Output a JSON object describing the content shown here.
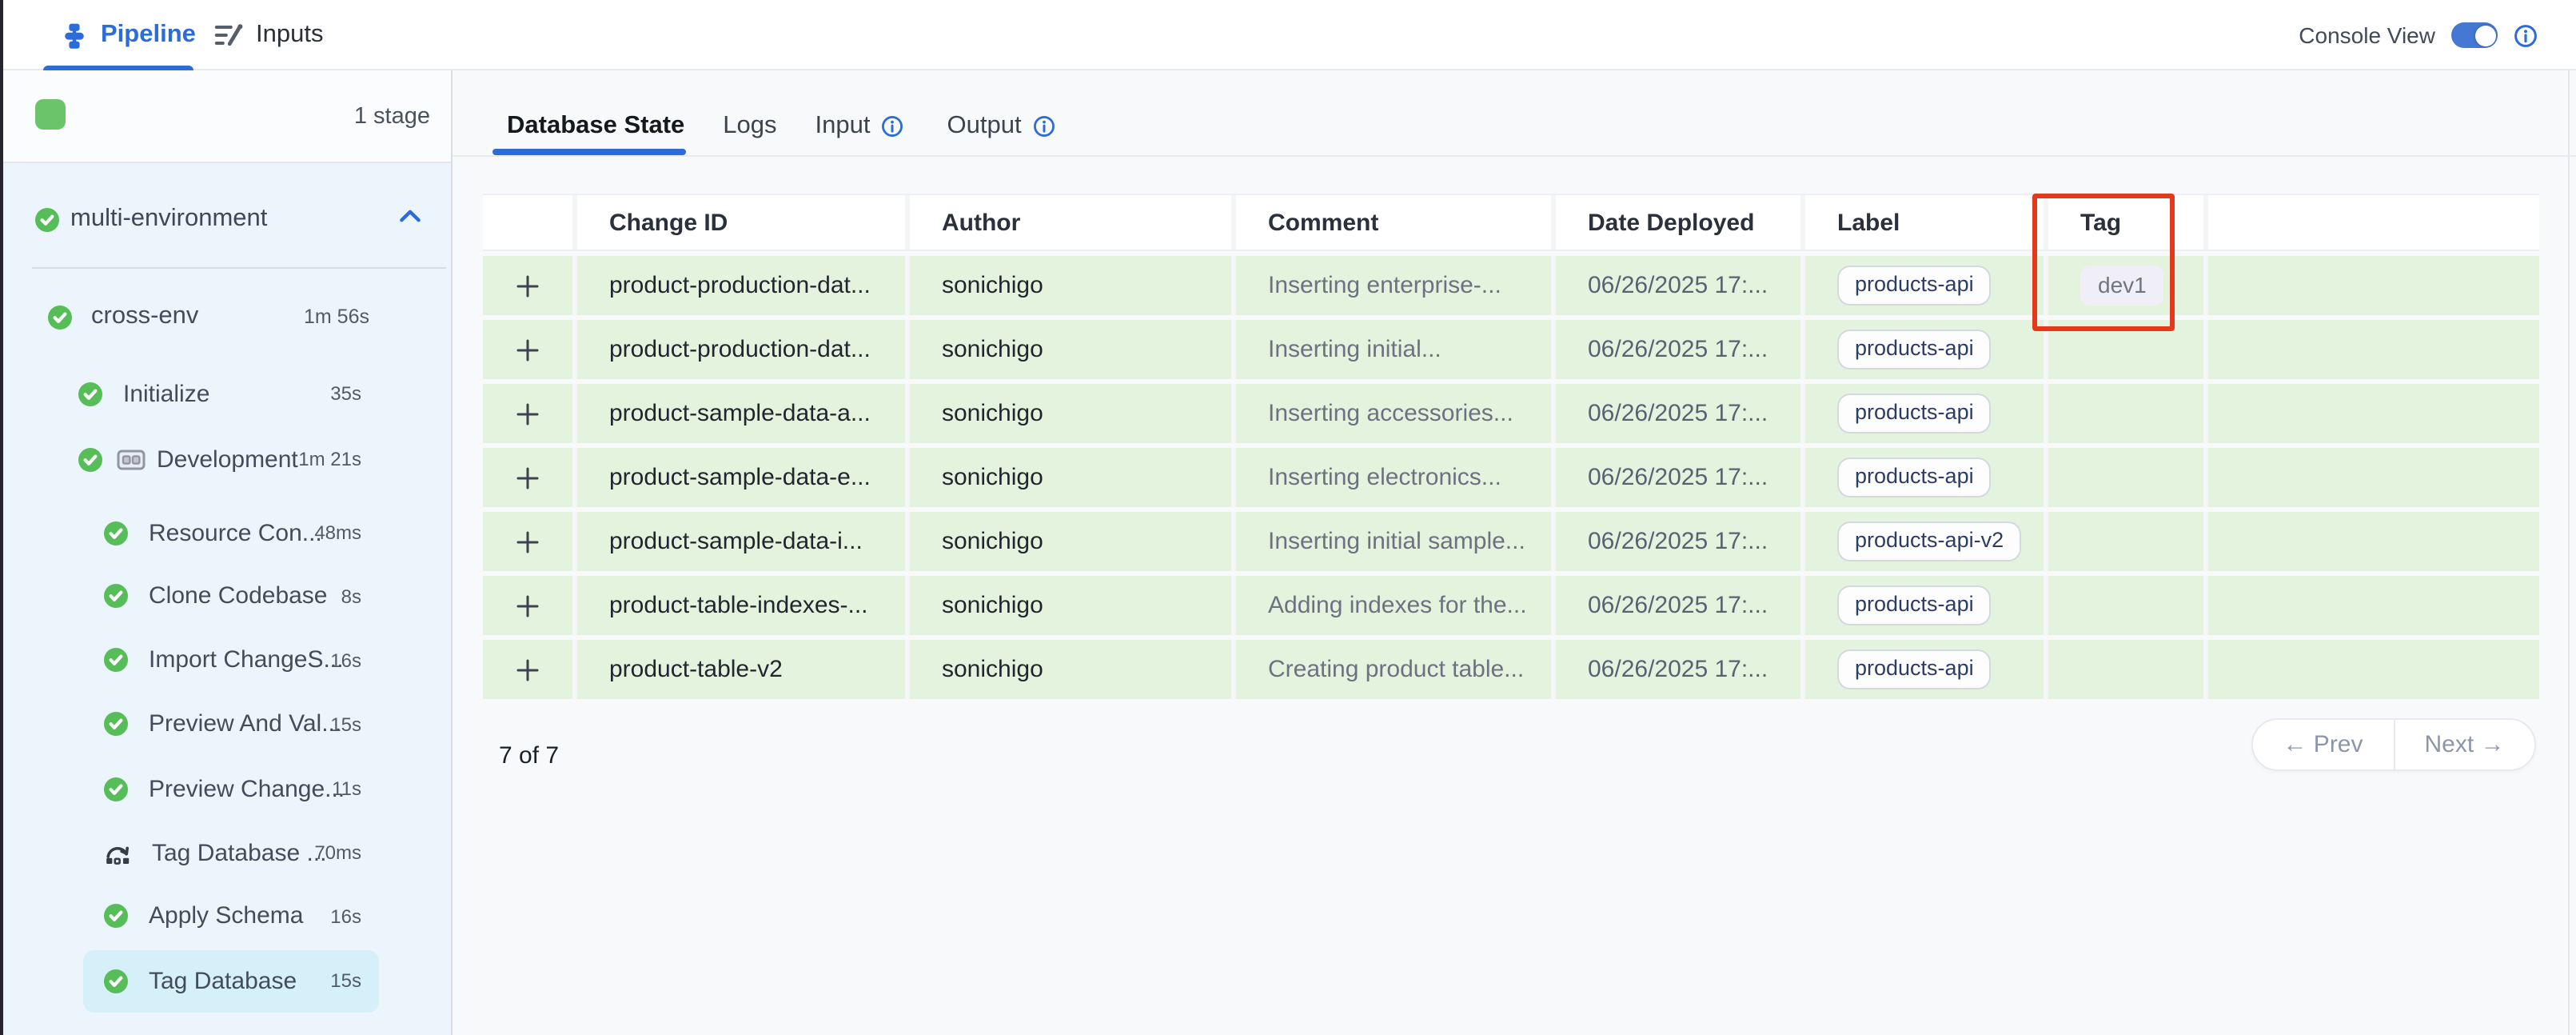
{
  "colors": {
    "accent_blue": "#2b6cd9",
    "success_green": "#57bd58",
    "stage_green": "#6cc46a",
    "row_green": "#e4f3de",
    "annotation_red": "#e5391b",
    "selected_item_bg": "#d5f0f9",
    "sidebar_bg": "#ebf5fb"
  },
  "top_bar": {
    "tabs": [
      {
        "label": "Pipeline",
        "active": true
      },
      {
        "label": "Inputs",
        "active": false
      }
    ],
    "console_view_label": "Console View",
    "console_toggle_on": true
  },
  "sidebar": {
    "stage_count_label": "1 stage",
    "root": {
      "label": "multi-environment",
      "status": "success",
      "expanded": true
    },
    "tree": [
      {
        "label": "cross-env",
        "duration": "1m 56s",
        "indent": 1,
        "icon": "check-circle"
      },
      {
        "label": "Initialize",
        "duration": "35s",
        "indent": 2,
        "icon": "check-circle"
      },
      {
        "label": "Development",
        "duration": "1m 21s",
        "indent": 2,
        "icon": "check-circle",
        "has_matrix_icon": true
      },
      {
        "label": "Resource Con...",
        "duration": "48ms",
        "indent": 3,
        "icon": "check-circle"
      },
      {
        "label": "Clone Codebase",
        "duration": "8s",
        "indent": 3,
        "icon": "check-circle"
      },
      {
        "label": "Import ChangeS...",
        "duration": "16s",
        "indent": 3,
        "icon": "check-circle"
      },
      {
        "label": "Preview And Val...",
        "duration": "15s",
        "indent": 3,
        "icon": "check-circle"
      },
      {
        "label": "Preview Change...",
        "duration": "11s",
        "indent": 3,
        "icon": "check-circle"
      },
      {
        "label": "Tag Database ...",
        "duration": "70ms",
        "indent": 3,
        "icon": "rollback"
      },
      {
        "label": "Apply Schema",
        "duration": "16s",
        "indent": 3,
        "icon": "check-circle"
      },
      {
        "label": "Tag Database",
        "duration": "15s",
        "indent": 3,
        "icon": "check-circle",
        "selected": true
      }
    ]
  },
  "main": {
    "tabs": [
      {
        "label": "Database State",
        "active": true,
        "has_info_icon": false
      },
      {
        "label": "Logs",
        "active": false,
        "has_info_icon": false
      },
      {
        "label": "Input",
        "active": false,
        "has_info_icon": true
      },
      {
        "label": "Output",
        "active": false,
        "has_info_icon": true
      }
    ],
    "table": {
      "columns": [
        "",
        "Change ID",
        "Author",
        "Comment",
        "Date Deployed",
        "Label",
        "Tag",
        ""
      ],
      "rows": [
        {
          "change_id": "product-production-dat...",
          "author": "sonichigo",
          "comment": "Inserting enterprise-...",
          "date": "06/26/2025 17:...",
          "label": "products-api",
          "tag": "dev1"
        },
        {
          "change_id": "product-production-dat...",
          "author": "sonichigo",
          "comment": "Inserting initial...",
          "date": "06/26/2025 17:...",
          "label": "products-api",
          "tag": ""
        },
        {
          "change_id": "product-sample-data-a...",
          "author": "sonichigo",
          "comment": "Inserting accessories...",
          "date": "06/26/2025 17:...",
          "label": "products-api",
          "tag": ""
        },
        {
          "change_id": "product-sample-data-e...",
          "author": "sonichigo",
          "comment": "Inserting electronics...",
          "date": "06/26/2025 17:...",
          "label": "products-api",
          "tag": ""
        },
        {
          "change_id": "product-sample-data-i...",
          "author": "sonichigo",
          "comment": "Inserting initial sample...",
          "date": "06/26/2025 17:...",
          "label": "products-api-v2",
          "tag": ""
        },
        {
          "change_id": "product-table-indexes-...",
          "author": "sonichigo",
          "comment": "Adding indexes for the...",
          "date": "06/26/2025 17:...",
          "label": "products-api",
          "tag": ""
        },
        {
          "change_id": "product-table-v2",
          "author": "sonichigo",
          "comment": "Creating product table...",
          "date": "06/26/2025 17:...",
          "label": "products-api",
          "tag": ""
        }
      ],
      "count_label": "7 of 7",
      "annotation": {
        "column": "Tag",
        "highlighted_value": "dev1"
      }
    },
    "pagination": {
      "prev_label": "← Prev",
      "next_label": "Next →"
    }
  }
}
